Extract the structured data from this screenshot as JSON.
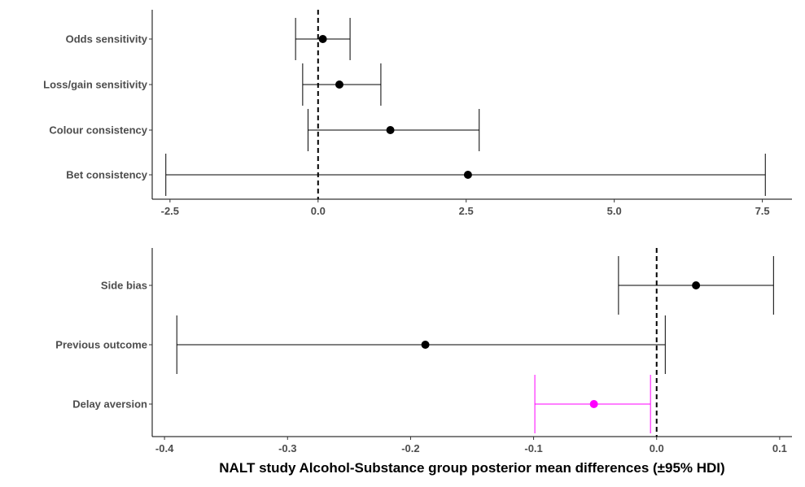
{
  "chart_data": [
    {
      "type": "forest",
      "xlim": [
        -2.8,
        8.0
      ],
      "ticks": [
        -2.5,
        0.0,
        2.5,
        5.0,
        7.5
      ],
      "tick_labels": [
        "-2.5",
        "0.0",
        "2.5",
        "5.0",
        "7.5"
      ],
      "reference_line": 0,
      "grid": false,
      "rows": [
        {
          "label": "Odds sensitivity",
          "mean": 0.08,
          "lower": -0.38,
          "upper": 0.54,
          "color": "#000000"
        },
        {
          "label": "Loss/gain sensitivity",
          "mean": 0.36,
          "lower": -0.26,
          "upper": 1.06,
          "color": "#000000"
        },
        {
          "label": "Colour consistency",
          "mean": 1.22,
          "lower": -0.17,
          "upper": 2.72,
          "color": "#000000"
        },
        {
          "label": "Bet consistency",
          "mean": 2.53,
          "lower": -2.57,
          "upper": 7.55,
          "color": "#000000"
        }
      ]
    },
    {
      "type": "forest",
      "xlim": [
        -0.41,
        0.11
      ],
      "ticks": [
        -0.4,
        -0.3,
        -0.2,
        -0.1,
        0.0,
        0.1
      ],
      "tick_labels": [
        "-0.4",
        "-0.3",
        "-0.2",
        "-0.1",
        "0.0",
        "0.1"
      ],
      "reference_line": 0,
      "grid": false,
      "rows": [
        {
          "label": "Side bias",
          "mean": 0.032,
          "lower": -0.031,
          "upper": 0.095,
          "color": "#000000"
        },
        {
          "label": "Previous outcome",
          "mean": -0.188,
          "lower": -0.39,
          "upper": 0.007,
          "color": "#000000"
        },
        {
          "label": "Delay aversion",
          "mean": -0.051,
          "lower": -0.099,
          "upper": -0.005,
          "color": "#ff00ff"
        }
      ]
    }
  ],
  "xlabel": "NALT study Alcohol-Substance group posterior mean differences (±95% HDI)"
}
